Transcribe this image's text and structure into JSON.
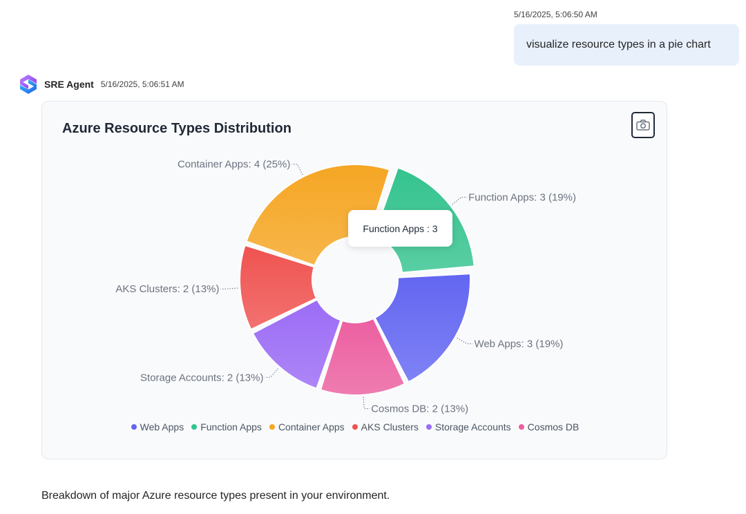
{
  "user_message": {
    "timestamp": "5/16/2025, 5:06:50 AM",
    "text": "visualize resource types in a pie chart"
  },
  "agent": {
    "name": "SRE Agent",
    "timestamp": "5/16/2025, 5:06:51 AM",
    "logo_icon": "sre-agent-logo-icon",
    "colors": {
      "logo_top": "#a855f7",
      "logo_bottom": "#2563eb"
    }
  },
  "chart_card": {
    "snapshot_icon": "camera-icon",
    "tooltip": {
      "label": "Function Apps",
      "value": 3,
      "text": "Function Apps : 3"
    }
  },
  "chart_data": {
    "type": "pie",
    "variant": "donut",
    "title": "Azure Resource Types Distribution",
    "categories": [
      "Web Apps",
      "Function Apps",
      "Container Apps",
      "AKS Clusters",
      "Storage Accounts",
      "Cosmos DB"
    ],
    "values": [
      3,
      3,
      4,
      2,
      2,
      2
    ],
    "percentages": [
      19,
      19,
      25,
      13,
      13,
      13
    ],
    "labels": [
      "Web Apps: 3 (19%)",
      "Function Apps: 3 (19%)",
      "Container Apps: 4 (25%)",
      "AKS Clusters: 2 (13%)",
      "Storage Accounts: 2 (13%)",
      "Cosmos DB: 2 (13%)"
    ],
    "colors": [
      "#6366f1",
      "#34c38f",
      "#f5a623",
      "#ef5350",
      "#9b6cf5",
      "#ec5fa0"
    ],
    "highlighted": "Function Apps",
    "legend_position": "bottom"
  },
  "footer": {
    "text": "Breakdown of major Azure resource types present in your environment."
  }
}
